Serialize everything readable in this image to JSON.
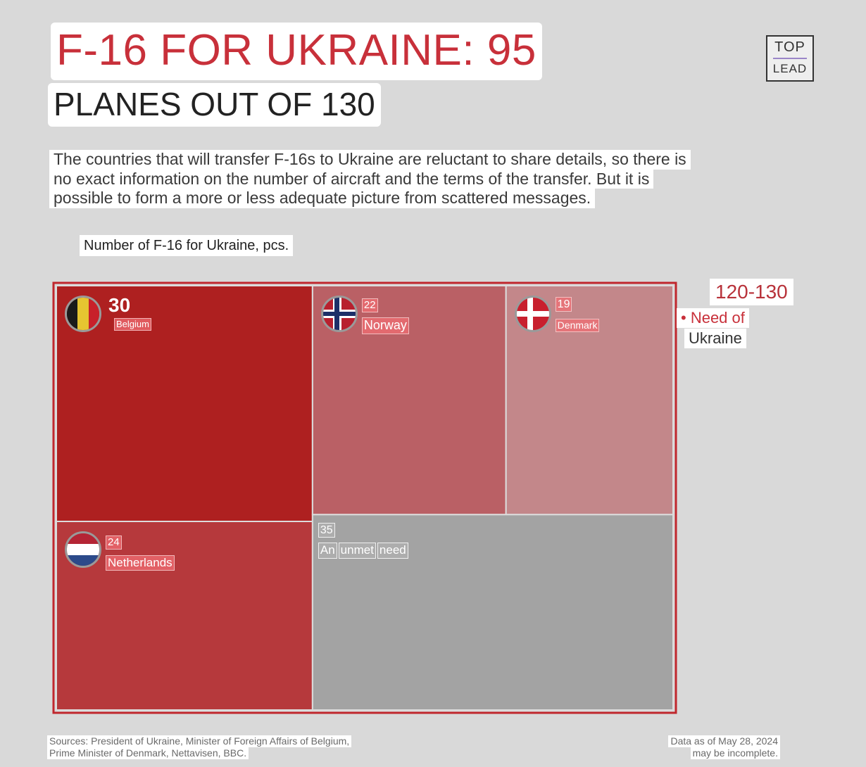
{
  "title": {
    "line1": "F-16 FOR UKRAINE: 95",
    "line2": "PLANES OUT OF 130"
  },
  "logo": {
    "top": "TOP",
    "bottom": "LEAD"
  },
  "description": [
    "The countries that will transfer F-16s to Ukraine are reluctant to share details, so there is",
    "no exact information on the number of aircraft and the terms of the transfer. But it is",
    "possible to form a more or less adequate picture from scattered messages."
  ],
  "chart_data": {
    "type": "treemap",
    "title": "Number of F-16 for Ukraine, pcs.",
    "items": [
      {
        "label": "Belgium",
        "value": 30,
        "value_label": "30",
        "color": "#ae2020",
        "flag": "belgium-flag-icon"
      },
      {
        "label": "Norway",
        "value": 22,
        "value_label": "22",
        "color": "#ba6065",
        "flag": "norway-flag-icon"
      },
      {
        "label": "Denmark",
        "value": 19,
        "value_label": "19",
        "color": "#c3878a",
        "flag": "denmark-flag-icon"
      },
      {
        "label": "Netherlands",
        "value": 24,
        "value_label": "24",
        "color": "#b6393c",
        "flag": "netherlands-flag-icon"
      },
      {
        "label": "An unmet need",
        "value": 35,
        "value_label": "35",
        "color": "#a3a3a3",
        "flag": ""
      }
    ],
    "need": {
      "range": "120-130",
      "line1": "• Need of",
      "line2": "Ukraine"
    },
    "frame_color": "#c0272d"
  },
  "footer": {
    "sources_line1": "Sources: President of Ukraine, Minister of Foreign Affairs of Belgium,",
    "sources_line2": "Prime Minister of Denmark, Nettavisen, BBC.",
    "date_line1": "Data as of May 28, 2024",
    "date_line2": "may be incomplete."
  }
}
